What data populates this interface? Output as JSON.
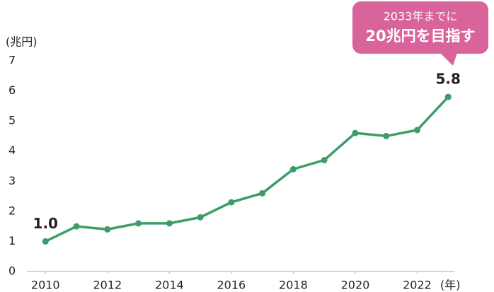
{
  "chart_data": {
    "type": "line",
    "y_label": "(兆円)",
    "x_label": "(年)",
    "annotation": [
      "2033年までに",
      "20兆円を目指す"
    ],
    "x": [
      2010,
      2011,
      2012,
      2013,
      2014,
      2015,
      2016,
      2017,
      2018,
      2019,
      2020,
      2021,
      2022,
      2023
    ],
    "values": [
      1.0,
      1.5,
      1.4,
      1.6,
      1.6,
      1.8,
      2.3,
      2.6,
      3.4,
      3.7,
      4.6,
      4.5,
      4.7,
      5.8
    ],
    "value_labels": [
      "1.0",
      null,
      null,
      null,
      null,
      null,
      null,
      null,
      null,
      null,
      null,
      null,
      null,
      "5.8"
    ],
    "color": "#3c9d69",
    "xlim": [
      2009.4,
      2023.2
    ],
    "xticks": [
      2010,
      2012,
      2014,
      2016,
      2018,
      2020,
      2022
    ],
    "ylim": [
      0,
      7
    ],
    "yticks": [
      0,
      1,
      2,
      3,
      4,
      5,
      6,
      7
    ],
    "grid": false
  }
}
